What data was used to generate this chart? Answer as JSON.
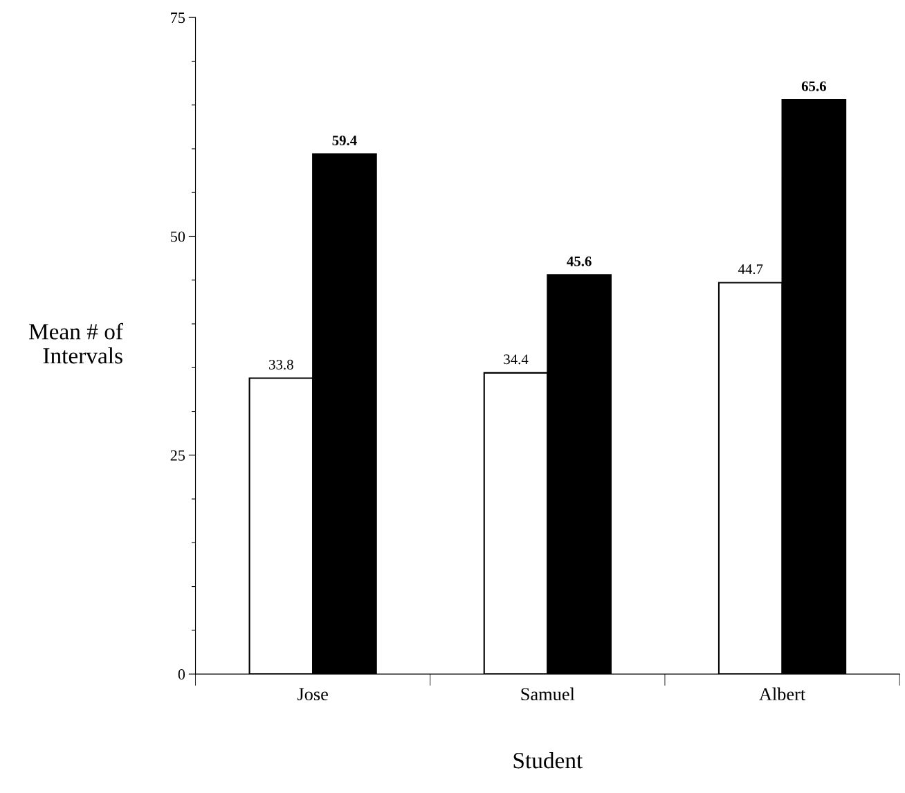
{
  "chart_data": {
    "type": "bar",
    "xlabel": "Student",
    "ylabel": "Mean # of\nIntervals",
    "categories": [
      "Jose",
      "Samuel",
      "Albert"
    ],
    "series": [
      {
        "color": "#ffffff",
        "values": [
          33.8,
          34.4,
          44.7
        ]
      },
      {
        "color": "#000000",
        "values": [
          59.4,
          45.6,
          65.6
        ]
      }
    ],
    "ylim": [
      0,
      75
    ],
    "yticks": [
      0,
      {
        "value": 5,
        "label": null
      },
      {
        "value": 10,
        "label": null
      },
      {
        "value": 15,
        "label": null
      },
      {
        "value": 20,
        "label": null
      },
      25,
      {
        "value": 30,
        "label": null
      },
      {
        "value": 35,
        "label": null
      },
      {
        "value": 40,
        "label": null
      },
      {
        "value": 45,
        "label": null
      },
      50,
      {
        "value": 55,
        "label": null
      },
      {
        "value": 60,
        "label": null
      },
      {
        "value": 65,
        "label": null
      },
      {
        "value": 70,
        "label": null
      },
      75
    ],
    "data_labels": true,
    "grid": false,
    "legend": false
  }
}
